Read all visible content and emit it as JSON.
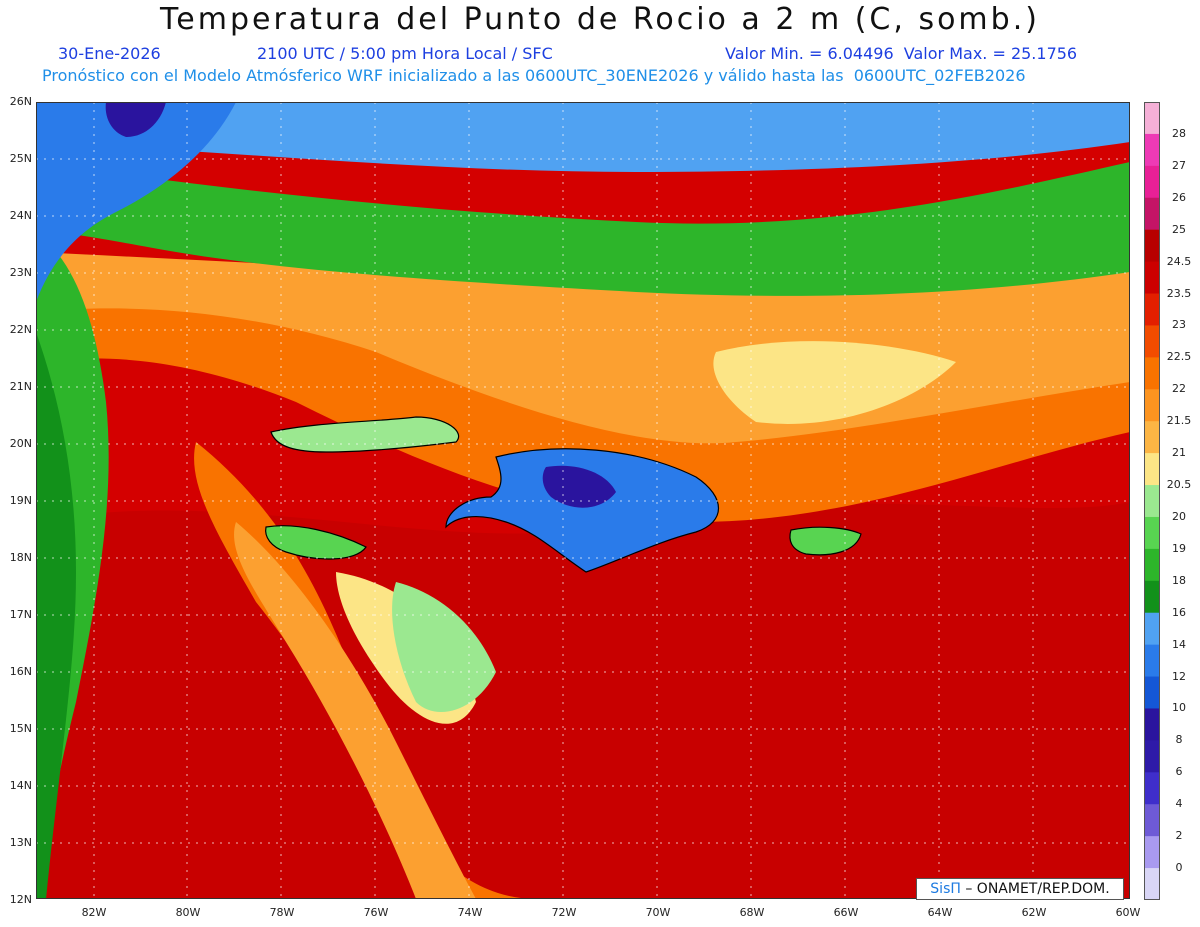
{
  "header": {
    "title": "Temperatura del Punto de Rocio a 2 m (C, somb.)",
    "date": "30-Ene-2026",
    "time": "2100 UTC / 5:00 pm Hora Local / SFC",
    "min_max": "Valor Min. = 6.04496  Valor Max. = 25.1756",
    "subtitle": "Pronóstico con el Modelo Atmósferico WRF inicializado a las 0600UTC_30ENE2026 y válido hasta las  0600UTC_02FEB2026"
  },
  "credit": {
    "brand": "SisΠ",
    "text": " – ONAMET/REP.DOM."
  },
  "axes": {
    "y_labels": [
      "26N",
      "25N",
      "24N",
      "23N",
      "22N",
      "21N",
      "20N",
      "19N",
      "18N",
      "17N",
      "16N",
      "15N",
      "14N",
      "13N",
      "12N"
    ],
    "x_labels": [
      "82W",
      "80W",
      "78W",
      "76W",
      "74W",
      "72W",
      "70W",
      "68W",
      "66W",
      "64W",
      "62W",
      "60W"
    ],
    "lat_range": [
      12,
      26
    ],
    "lon_range": [
      -83.2,
      -60
    ]
  },
  "colorbar": {
    "labels": [
      "28",
      "27",
      "26",
      "25",
      "24.5",
      "23.5",
      "23",
      "22.5",
      "22",
      "21.5",
      "21",
      "20.5",
      "20",
      "19",
      "18",
      "16",
      "14",
      "12",
      "10",
      "8",
      "6",
      "4",
      "2",
      "0"
    ],
    "colors": [
      "#f5b0d7",
      "#ee3ab5",
      "#e82096",
      "#c41466",
      "#b80000",
      "#cc0000",
      "#e31f00",
      "#f24c00",
      "#f97300",
      "#fc9420",
      "#fcb544",
      "#fce586",
      "#9be890",
      "#58d451",
      "#2db52a",
      "#12911a",
      "#50a2f2",
      "#2a7bea",
      "#1457d6",
      "#2a149e",
      "#2e1aa8",
      "#3f2ecb",
      "#6e5ad6",
      "#a99af0",
      "#d9d6f6"
    ]
  },
  "map": {
    "palette": {
      "ocean_red": "#d40000",
      "orange": "#f97300",
      "light_orange": "#fca030",
      "yellow": "#fce586",
      "light_green": "#9be890",
      "green": "#2db52a",
      "dark_green": "#12911a",
      "light_blue": "#50a2f2",
      "blue": "#2a7bea",
      "dark_blue": "#2a149e"
    }
  }
}
